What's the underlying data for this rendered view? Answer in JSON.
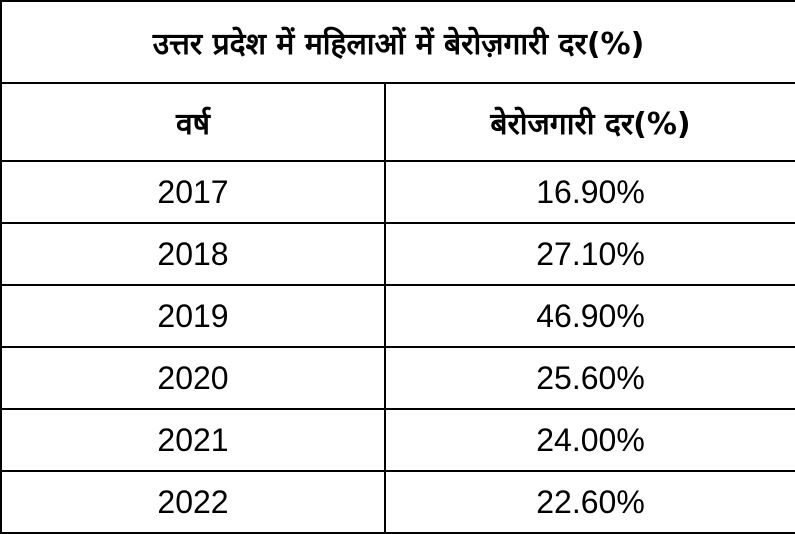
{
  "chart_data": {
    "type": "table",
    "title": "उत्तर प्रदेश में महिलाओं में बेरोज़गारी दर(%)",
    "columns": [
      "वर्ष",
      "बेरोजगारी दर(%)"
    ],
    "rows": [
      {
        "year": "2017",
        "rate": "16.90%"
      },
      {
        "year": "2018",
        "rate": "27.10%"
      },
      {
        "year": "2019",
        "rate": "46.90%"
      },
      {
        "year": "2020",
        "rate": "25.60%"
      },
      {
        "year": "2021",
        "rate": "24.00%"
      },
      {
        "year": "2022",
        "rate": "22.60%"
      }
    ]
  },
  "colors": {
    "border": "#000000",
    "background": "#ffffff",
    "text": "#000000"
  }
}
